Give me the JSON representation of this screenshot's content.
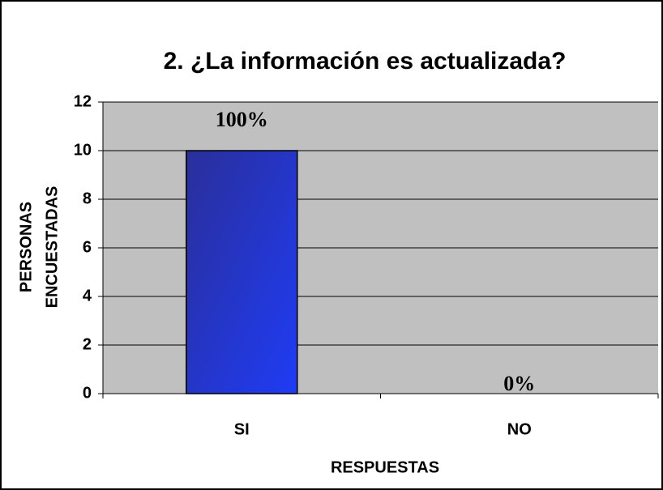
{
  "chart_data": {
    "type": "bar",
    "title": "2. ¿La información es actualizada?",
    "ylabel": [
      "PERSONAS",
      "ENCUESTADAS"
    ],
    "xlabel": "RESPUESTAS",
    "categories": [
      "SI",
      "NO"
    ],
    "values": [
      10,
      0
    ],
    "value_labels": [
      "100%",
      "0%"
    ],
    "color": "#2a36d0",
    "ylim": [
      0,
      12
    ],
    "yticks": [
      0,
      2,
      4,
      6,
      8,
      10,
      12
    ],
    "grid": true
  }
}
